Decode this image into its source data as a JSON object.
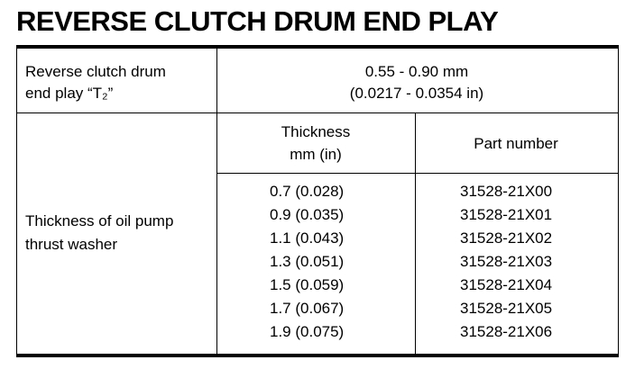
{
  "title": "REVERSE CLUTCH DRUM END PLAY",
  "table": {
    "row1": {
      "label": [
        "Reverse clutch drum",
        "end play “T₂”"
      ],
      "value": [
        "0.55 - 0.90 mm",
        "(0.0217 - 0.0354 in)"
      ]
    },
    "row2": {
      "label": [
        "Thickness of oil pump",
        "thrust washer"
      ],
      "headers": [
        [
          "Thickness",
          "mm (in)"
        ],
        [
          "Part number"
        ]
      ],
      "rows": [
        [
          "0.7 (0.028)",
          "31528-21X00"
        ],
        [
          "0.9 (0.035)",
          "31528-21X01"
        ],
        [
          "1.1 (0.043)",
          "31528-21X02"
        ],
        [
          "1.3 (0.051)",
          "31528-21X03"
        ],
        [
          "1.5 (0.059)",
          "31528-21X04"
        ],
        [
          "1.7 (0.067)",
          "31528-21X05"
        ],
        [
          "1.9 (0.075)",
          "31528-21X06"
        ]
      ]
    }
  }
}
